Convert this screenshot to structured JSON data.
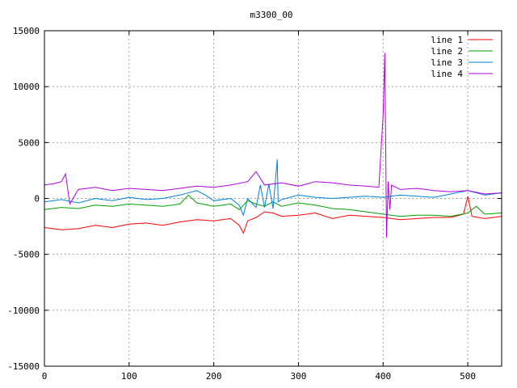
{
  "chart_data": {
    "type": "line",
    "title": "m3300_00",
    "xlim": [
      0,
      540
    ],
    "ylim": [
      -15000,
      15000
    ],
    "x_ticks": [
      0,
      100,
      200,
      300,
      400,
      500
    ],
    "y_ticks": [
      -15000,
      -10000,
      -5000,
      0,
      5000,
      10000,
      15000
    ],
    "grid": true,
    "legend_position": "top-right",
    "series": [
      {
        "name": "line 1",
        "color": "#ff0000",
        "x": [
          0,
          20,
          40,
          60,
          80,
          100,
          120,
          140,
          160,
          180,
          200,
          220,
          230,
          235,
          240,
          250,
          260,
          270,
          280,
          300,
          320,
          340,
          360,
          380,
          400,
          420,
          440,
          460,
          480,
          495,
          500,
          505,
          520,
          540
        ],
        "values": [
          -2600,
          -2800,
          -2700,
          -2400,
          -2600,
          -2300,
          -2200,
          -2400,
          -2100,
          -1900,
          -2000,
          -1800,
          -2400,
          -3100,
          -2000,
          -1700,
          -1200,
          -1300,
          -1600,
          -1500,
          -1300,
          -1800,
          -1500,
          -1600,
          -1700,
          -1900,
          -1800,
          -1700,
          -1700,
          -1400,
          200,
          -1600,
          -1800,
          -1600
        ]
      },
      {
        "name": "line 2",
        "color": "#00a000",
        "x": [
          0,
          20,
          40,
          60,
          80,
          100,
          120,
          140,
          160,
          170,
          180,
          200,
          220,
          230,
          240,
          250,
          260,
          270,
          280,
          300,
          320,
          340,
          360,
          380,
          400,
          420,
          440,
          460,
          480,
          500,
          510,
          520,
          540
        ],
        "values": [
          -1000,
          -800,
          -900,
          -600,
          -700,
          -500,
          -600,
          -700,
          -500,
          300,
          -400,
          -700,
          -500,
          -1000,
          -200,
          -500,
          -700,
          -300,
          -700,
          -400,
          -600,
          -900,
          -1000,
          -1200,
          -1400,
          -1600,
          -1500,
          -1500,
          -1600,
          -1300,
          -700,
          -1400,
          -1300
        ]
      },
      {
        "name": "line 3",
        "color": "#0080e0",
        "x": [
          0,
          20,
          40,
          60,
          80,
          100,
          120,
          140,
          160,
          180,
          190,
          200,
          220,
          230,
          235,
          240,
          250,
          255,
          260,
          265,
          270,
          275,
          276,
          280,
          300,
          320,
          340,
          360,
          380,
          400,
          420,
          440,
          460,
          480,
          500,
          520,
          540
        ],
        "values": [
          -300,
          -100,
          -400,
          0,
          -200,
          100,
          -100,
          0,
          300,
          700,
          300,
          -200,
          0,
          -600,
          -1500,
          0,
          -800,
          1200,
          -800,
          1300,
          -900,
          3500,
          -300,
          -100,
          300,
          100,
          0,
          100,
          200,
          100,
          300,
          200,
          100,
          400,
          700,
          300,
          500
        ]
      },
      {
        "name": "line 4",
        "color": "#b000e0",
        "x": [
          0,
          10,
          20,
          25,
          30,
          40,
          60,
          80,
          100,
          120,
          140,
          160,
          180,
          200,
          220,
          240,
          250,
          260,
          280,
          300,
          320,
          340,
          360,
          380,
          395,
          400,
          402,
          404,
          406,
          408,
          410,
          420,
          440,
          460,
          480,
          500,
          520,
          540
        ],
        "values": [
          1200,
          1300,
          1500,
          2200,
          -500,
          800,
          1000,
          700,
          900,
          800,
          700,
          900,
          1100,
          1000,
          1200,
          1500,
          2400,
          1200,
          1400,
          1100,
          1500,
          1400,
          1200,
          1100,
          1000,
          7500,
          13000,
          -3500,
          1500,
          -1000,
          1200,
          800,
          900,
          700,
          600,
          700,
          400,
          500
        ]
      }
    ]
  }
}
